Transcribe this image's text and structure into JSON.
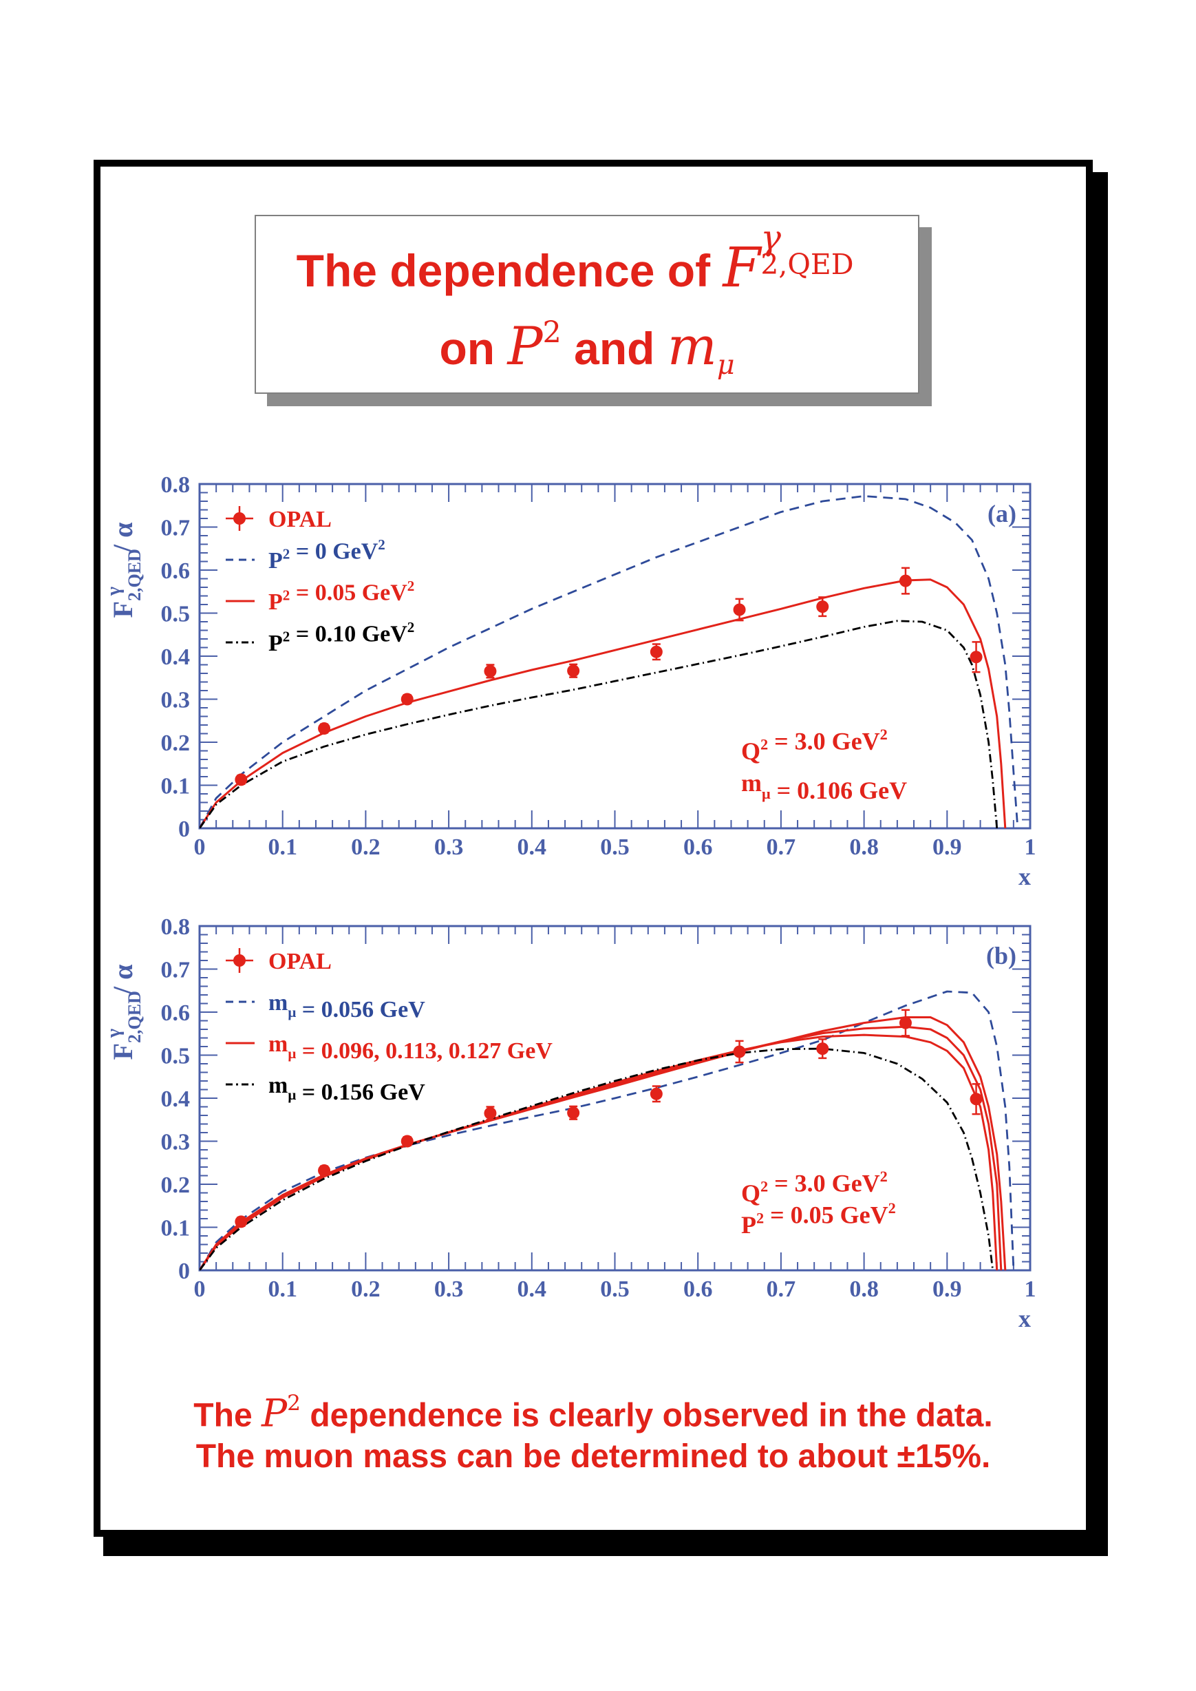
{
  "title": {
    "line1_text": "The dependence of",
    "line1_symbol": "F",
    "line1_sup": "γ",
    "line1_sub": "2,QED",
    "line2_prefix": "on",
    "line2_symbol": "P",
    "line2_sup": "2",
    "line2_and": "and",
    "line2_mass": "m",
    "line2_mass_sub": "μ"
  },
  "conclusion": {
    "line1_pre": "The",
    "line1_symbol": "P",
    "line1_sup": "2",
    "line1_post": "dependence is clearly observed in the data.",
    "line2_pre": "The muon mass can be determined to about",
    "line2_pm": "±15%",
    "line2_post": "."
  },
  "colors": {
    "red": "#e2231a",
    "blue": "#2e4a99",
    "black": "#000000",
    "axis": "#4a5fa8"
  },
  "chart_data": [
    {
      "type": "line",
      "panel_label": "(a)",
      "xlabel": "x",
      "ylabel": "F^γ_2,QED / α",
      "xlim": [
        0,
        1
      ],
      "ylim": [
        0,
        0.8
      ],
      "x_ticks": [
        "0",
        "0.1",
        "0.2",
        "0.3",
        "0.4",
        "0.5",
        "0.6",
        "0.7",
        "0.8",
        "0.9",
        "1"
      ],
      "y_ticks": [
        "0",
        "0.1",
        "0.2",
        "0.3",
        "0.4",
        "0.5",
        "0.6",
        "0.7",
        "0.8"
      ],
      "legend_position": "top-left",
      "legend": [
        {
          "label": "OPAL",
          "style": "points",
          "color": "#e2231a"
        },
        {
          "label": "P² =    0 GeV²",
          "style": "dashed",
          "color": "#2e4a99"
        },
        {
          "label": "P² = 0.05 GeV²",
          "style": "solid",
          "color": "#e2231a"
        },
        {
          "label": "P² = 0.10 GeV²",
          "style": "dashdot",
          "color": "#000000"
        }
      ],
      "annotations": [
        "Q² = 3.0 GeV²",
        "mμ = 0.106 GeV"
      ],
      "data_points": {
        "name": "OPAL",
        "x": [
          0.05,
          0.15,
          0.25,
          0.35,
          0.45,
          0.55,
          0.65,
          0.75,
          0.85,
          0.935
        ],
        "y": [
          0.113,
          0.232,
          0.3,
          0.365,
          0.366,
          0.41,
          0.508,
          0.515,
          0.575,
          0.398
        ],
        "err": [
          0.01,
          0.01,
          0.01,
          0.015,
          0.015,
          0.018,
          0.025,
          0.022,
          0.03,
          0.035
        ]
      },
      "series": [
        {
          "name": "P² = 0 GeV²",
          "style": "dashed",
          "color": "#2e4a99",
          "x": [
            0,
            0.02,
            0.05,
            0.1,
            0.15,
            0.2,
            0.25,
            0.3,
            0.35,
            0.4,
            0.45,
            0.5,
            0.55,
            0.6,
            0.65,
            0.7,
            0.75,
            0.8,
            0.85,
            0.88,
            0.91,
            0.93,
            0.95,
            0.96,
            0.97,
            0.975,
            0.98,
            0.985
          ],
          "y": [
            0,
            0.07,
            0.125,
            0.2,
            0.26,
            0.32,
            0.37,
            0.42,
            0.465,
            0.51,
            0.55,
            0.59,
            0.63,
            0.665,
            0.7,
            0.735,
            0.76,
            0.772,
            0.765,
            0.745,
            0.71,
            0.67,
            0.58,
            0.5,
            0.38,
            0.27,
            0.13,
            0
          ]
        },
        {
          "name": "P² = 0.05 GeV²",
          "style": "solid",
          "color": "#e2231a",
          "x": [
            0,
            0.02,
            0.05,
            0.1,
            0.15,
            0.2,
            0.25,
            0.3,
            0.35,
            0.4,
            0.45,
            0.5,
            0.55,
            0.6,
            0.65,
            0.7,
            0.75,
            0.8,
            0.85,
            0.88,
            0.9,
            0.92,
            0.94,
            0.95,
            0.96,
            0.965,
            0.97
          ],
          "y": [
            0,
            0.06,
            0.11,
            0.175,
            0.222,
            0.26,
            0.292,
            0.318,
            0.344,
            0.368,
            0.39,
            0.414,
            0.438,
            0.462,
            0.486,
            0.51,
            0.535,
            0.558,
            0.576,
            0.578,
            0.56,
            0.52,
            0.44,
            0.37,
            0.26,
            0.15,
            0
          ]
        },
        {
          "name": "P² = 0.10 GeV²",
          "style": "dashdot",
          "color": "#000000",
          "x": [
            0,
            0.02,
            0.05,
            0.1,
            0.15,
            0.2,
            0.25,
            0.3,
            0.35,
            0.4,
            0.45,
            0.5,
            0.55,
            0.6,
            0.65,
            0.7,
            0.75,
            0.8,
            0.84,
            0.87,
            0.9,
            0.92,
            0.93,
            0.94,
            0.95,
            0.955,
            0.96
          ],
          "y": [
            0,
            0.055,
            0.1,
            0.155,
            0.19,
            0.218,
            0.242,
            0.264,
            0.285,
            0.304,
            0.322,
            0.342,
            0.362,
            0.382,
            0.402,
            0.423,
            0.445,
            0.468,
            0.482,
            0.48,
            0.46,
            0.42,
            0.38,
            0.31,
            0.2,
            0.11,
            0
          ]
        }
      ]
    },
    {
      "type": "line",
      "panel_label": "(b)",
      "xlabel": "x",
      "ylabel": "F^γ_2,QED / α",
      "xlim": [
        0,
        1
      ],
      "ylim": [
        0,
        0.8
      ],
      "x_ticks": [
        "0",
        "0.1",
        "0.2",
        "0.3",
        "0.4",
        "0.5",
        "0.6",
        "0.7",
        "0.8",
        "0.9",
        "1"
      ],
      "y_ticks": [
        "0",
        "0.1",
        "0.2",
        "0.3",
        "0.4",
        "0.5",
        "0.6",
        "0.7",
        "0.8"
      ],
      "legend_position": "top-left",
      "legend": [
        {
          "label": "OPAL",
          "style": "points",
          "color": "#e2231a"
        },
        {
          "label": "mμ = 0.056 GeV",
          "style": "dashed",
          "color": "#2e4a99"
        },
        {
          "label": "mμ = 0.096, 0.113, 0.127 GeV",
          "style": "solid",
          "color": "#e2231a"
        },
        {
          "label": "mμ = 0.156 GeV",
          "style": "dashdot",
          "color": "#000000"
        }
      ],
      "annotations": [
        "Q² = 3.0 GeV²",
        "P² = 0.05 GeV²"
      ],
      "data_points": {
        "name": "OPAL",
        "x": [
          0.05,
          0.15,
          0.25,
          0.35,
          0.45,
          0.55,
          0.65,
          0.75,
          0.85,
          0.935
        ],
        "y": [
          0.113,
          0.232,
          0.3,
          0.365,
          0.366,
          0.41,
          0.508,
          0.515,
          0.575,
          0.398
        ],
        "err": [
          0.01,
          0.01,
          0.01,
          0.015,
          0.015,
          0.018,
          0.025,
          0.022,
          0.03,
          0.035
        ]
      },
      "series": [
        {
          "name": "mμ = 0.056 GeV",
          "style": "dashed",
          "color": "#2e4a99",
          "x": [
            0,
            0.02,
            0.05,
            0.1,
            0.15,
            0.2,
            0.25,
            0.3,
            0.35,
            0.4,
            0.45,
            0.5,
            0.55,
            0.6,
            0.65,
            0.7,
            0.75,
            0.8,
            0.85,
            0.9,
            0.93,
            0.95,
            0.96,
            0.97,
            0.975,
            0.98
          ],
          "y": [
            0,
            0.065,
            0.118,
            0.183,
            0.228,
            0.262,
            0.29,
            0.314,
            0.336,
            0.357,
            0.377,
            0.4,
            0.424,
            0.45,
            0.477,
            0.505,
            0.535,
            0.575,
            0.615,
            0.648,
            0.645,
            0.6,
            0.52,
            0.38,
            0.24,
            0
          ]
        },
        {
          "name": "mμ = 0.096 GeV",
          "style": "solid",
          "color": "#e2231a",
          "x": [
            0,
            0.02,
            0.05,
            0.1,
            0.15,
            0.2,
            0.25,
            0.3,
            0.35,
            0.4,
            0.45,
            0.5,
            0.55,
            0.6,
            0.65,
            0.7,
            0.75,
            0.8,
            0.85,
            0.88,
            0.9,
            0.92,
            0.94,
            0.95,
            0.96,
            0.965,
            0.97
          ],
          "y": [
            0,
            0.06,
            0.112,
            0.175,
            0.222,
            0.26,
            0.292,
            0.32,
            0.348,
            0.375,
            0.402,
            0.428,
            0.455,
            0.482,
            0.508,
            0.532,
            0.556,
            0.575,
            0.588,
            0.588,
            0.57,
            0.53,
            0.45,
            0.38,
            0.27,
            0.16,
            0
          ]
        },
        {
          "name": "mμ = 0.113 GeV",
          "style": "solid",
          "color": "#e2231a",
          "x": [
            0,
            0.02,
            0.05,
            0.1,
            0.15,
            0.2,
            0.25,
            0.3,
            0.35,
            0.4,
            0.45,
            0.5,
            0.55,
            0.6,
            0.65,
            0.7,
            0.75,
            0.8,
            0.85,
            0.88,
            0.9,
            0.92,
            0.94,
            0.95,
            0.96,
            0.965
          ],
          "y": [
            0,
            0.058,
            0.109,
            0.172,
            0.22,
            0.258,
            0.291,
            0.32,
            0.349,
            0.377,
            0.405,
            0.432,
            0.459,
            0.485,
            0.51,
            0.532,
            0.551,
            0.562,
            0.566,
            0.56,
            0.54,
            0.5,
            0.42,
            0.34,
            0.2,
            0
          ]
        },
        {
          "name": "mμ = 0.127 GeV",
          "style": "solid",
          "color": "#e2231a",
          "x": [
            0,
            0.02,
            0.05,
            0.1,
            0.15,
            0.2,
            0.25,
            0.3,
            0.35,
            0.4,
            0.45,
            0.5,
            0.55,
            0.6,
            0.65,
            0.7,
            0.75,
            0.8,
            0.85,
            0.88,
            0.9,
            0.92,
            0.94,
            0.95,
            0.955,
            0.96
          ],
          "y": [
            0,
            0.056,
            0.106,
            0.169,
            0.218,
            0.257,
            0.291,
            0.321,
            0.35,
            0.379,
            0.408,
            0.436,
            0.463,
            0.488,
            0.511,
            0.53,
            0.543,
            0.547,
            0.543,
            0.53,
            0.51,
            0.47,
            0.38,
            0.28,
            0.18,
            0
          ]
        },
        {
          "name": "mμ = 0.156 GeV",
          "style": "dashdot",
          "color": "#000000",
          "x": [
            0,
            0.02,
            0.05,
            0.1,
            0.15,
            0.2,
            0.25,
            0.3,
            0.35,
            0.4,
            0.45,
            0.5,
            0.55,
            0.6,
            0.65,
            0.7,
            0.75,
            0.8,
            0.84,
            0.87,
            0.9,
            0.92,
            0.93,
            0.94,
            0.95,
            0.955
          ],
          "y": [
            0,
            0.052,
            0.1,
            0.163,
            0.213,
            0.254,
            0.29,
            0.322,
            0.352,
            0.382,
            0.412,
            0.44,
            0.466,
            0.488,
            0.505,
            0.514,
            0.515,
            0.505,
            0.48,
            0.445,
            0.39,
            0.32,
            0.26,
            0.18,
            0.08,
            0
          ]
        }
      ]
    }
  ]
}
